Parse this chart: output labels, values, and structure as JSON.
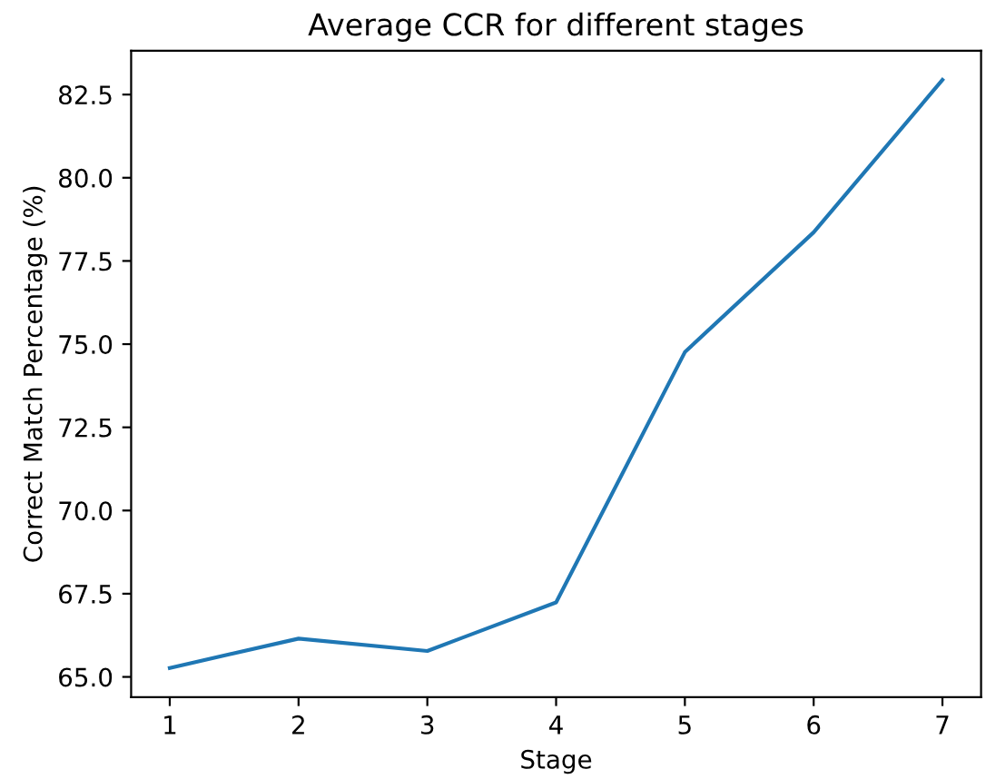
{
  "chart_data": {
    "type": "line",
    "title": "Average CCR for different stages",
    "xlabel": "Stage",
    "ylabel": "Correct Match Percentage (%)",
    "x": [
      1,
      2,
      3,
      4,
      5,
      6,
      7
    ],
    "series": [
      {
        "color": "#1f77b4",
        "values": [
          65.27,
          66.15,
          65.78,
          67.24,
          74.76,
          78.36,
          82.94
        ]
      }
    ],
    "xlim": [
      0.7,
      7.3
    ],
    "xticks": [
      1,
      2,
      3,
      4,
      5,
      6,
      7
    ],
    "ylim": [
      64.39,
      83.82
    ],
    "yticks": [
      {
        "value": 65,
        "label": "65.0"
      },
      {
        "value": 67.5,
        "label": "67.5"
      },
      {
        "value": 70,
        "label": "70.0"
      },
      {
        "value": 72.5,
        "label": "72.5"
      },
      {
        "value": 75,
        "label": "75.0"
      },
      {
        "value": 77.5,
        "label": "77.5"
      },
      {
        "value": 80,
        "label": "80.0"
      },
      {
        "value": 82.5,
        "label": "82.5"
      }
    ],
    "grid": false,
    "legend": false
  }
}
